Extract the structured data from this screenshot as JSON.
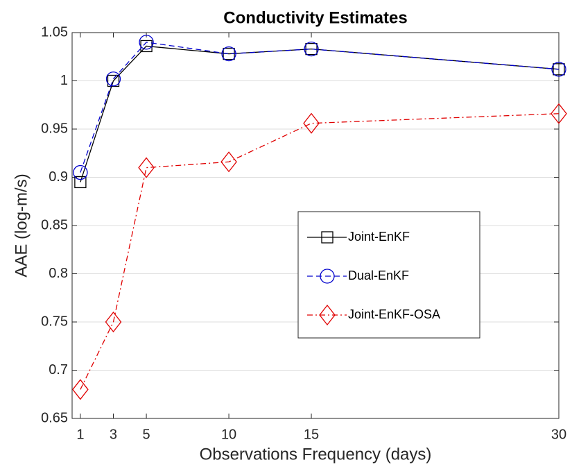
{
  "chart_data": {
    "type": "line",
    "title": "Conductivity Estimates",
    "x_label": "Observations Frequency (days)",
    "y_label": "AAE (log-m/s)",
    "x": [
      1,
      3,
      5,
      10,
      15,
      30
    ],
    "series": [
      {
        "name": "Joint-EnKF",
        "color": "#000000",
        "marker": "square",
        "dash": "solid",
        "values": [
          0.895,
          1.0,
          1.036,
          1.028,
          1.033,
          1.012
        ]
      },
      {
        "name": "Dual-EnKF",
        "color": "#0000cc",
        "marker": "circle",
        "dash": "dashed",
        "values": [
          0.905,
          1.002,
          1.04,
          1.028,
          1.033,
          1.012
        ]
      },
      {
        "name": "Joint-EnKF-OSA",
        "color": "#e00000",
        "marker": "diamond",
        "dash": "dashdot",
        "values": [
          0.68,
          0.75,
          0.91,
          0.916,
          0.956,
          0.966
        ]
      }
    ],
    "xlim": [
      0.5,
      30
    ],
    "xticks": [
      1,
      3,
      5,
      10,
      15,
      30
    ],
    "ylim": [
      0.65,
      1.05
    ],
    "yticks": [
      0.65,
      0.7,
      0.75,
      0.8,
      0.85,
      0.9,
      0.95,
      1,
      1.05
    ],
    "grid": true,
    "legend": "center right"
  }
}
